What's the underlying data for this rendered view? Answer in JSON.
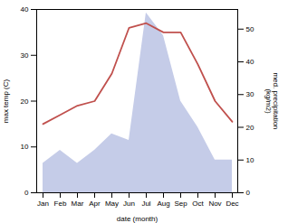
{
  "chart_data": {
    "type": "line",
    "categories": [
      "Jan",
      "Feb",
      "Mar",
      "Apr",
      "May",
      "Jun",
      "Jul",
      "Aug",
      "Sep",
      "Oct",
      "Nov",
      "Dec"
    ],
    "series": [
      {
        "type": "area",
        "axis": "y2",
        "color": "#c5cce8",
        "values": [
          9,
          13,
          9,
          13,
          18,
          16,
          55,
          48,
          28,
          20,
          10,
          10
        ]
      },
      {
        "type": "line",
        "color": "#c0504d",
        "values": [
          15,
          17,
          19,
          20,
          26,
          36,
          37,
          35,
          35,
          28,
          20,
          15.5
        ]
      }
    ],
    "xlabel": "date (month)",
    "ylabel": "max temp (C)",
    "y2label": "med. precipitation\n(kg/m2)",
    "ylim": [
      0,
      40
    ],
    "yticks": [
      0,
      10,
      20,
      30,
      40
    ],
    "y2lim": [
      0,
      56
    ],
    "y2ticks": [
      0,
      10,
      20,
      30,
      40,
      50
    ],
    "grid": false
  }
}
